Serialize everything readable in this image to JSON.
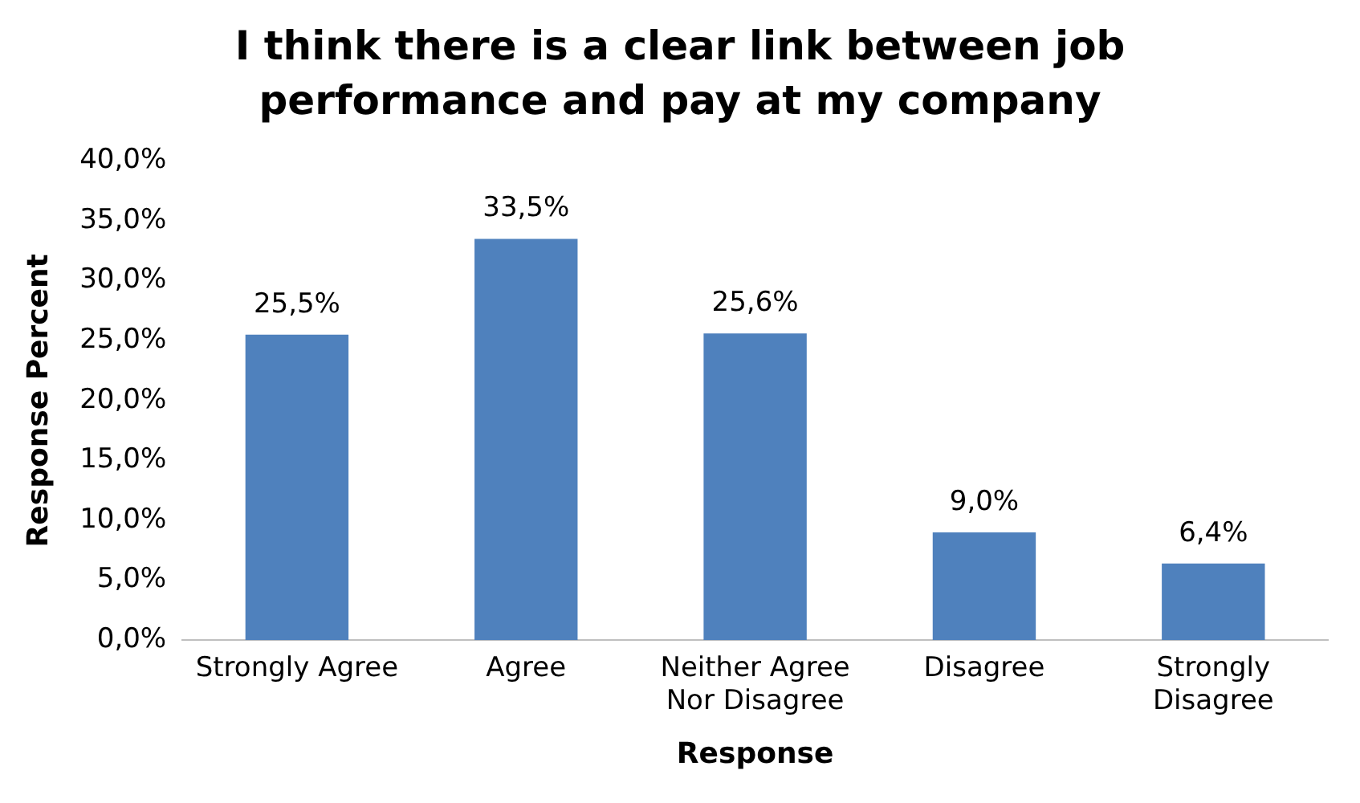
{
  "chart_data": {
    "type": "bar",
    "title": "I think there is a clear link between job performance and pay at my company",
    "xlabel": "Response",
    "ylabel": "Response Percent",
    "categories": [
      "Strongly Agree",
      "Agree",
      "Neither Agree Nor Disagree",
      "Disagree",
      "Strongly Disagree"
    ],
    "values": [
      25.5,
      33.5,
      25.6,
      9.0,
      6.4
    ],
    "value_labels": [
      "25,5%",
      "33,5%",
      "25,6%",
      "9,0%",
      "6,4%"
    ],
    "color": "#4f81bd",
    "ylim": [
      0,
      40
    ],
    "yticks": [
      {
        "value": 0,
        "label": "0,0%"
      },
      {
        "value": 5,
        "label": "5,0%"
      },
      {
        "value": 10,
        "label": "10,0%"
      },
      {
        "value": 15,
        "label": "15,0%"
      },
      {
        "value": 20,
        "label": "20,0%"
      },
      {
        "value": 25,
        "label": "25,0%"
      },
      {
        "value": 30,
        "label": "30,0%"
      },
      {
        "value": 35,
        "label": "35,0%"
      },
      {
        "value": 40,
        "label": "40,0%"
      }
    ],
    "grid": false,
    "legend": false
  }
}
